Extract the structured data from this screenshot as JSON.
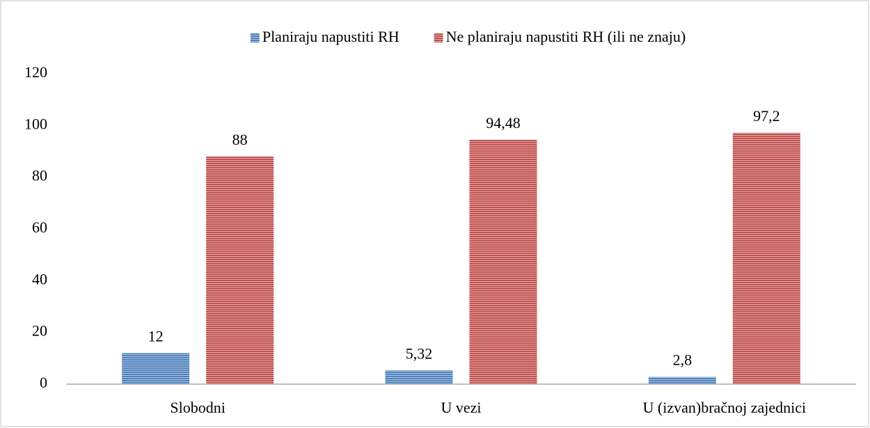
{
  "chart_data": {
    "type": "bar",
    "categories": [
      "Slobodni",
      "U vezi",
      "U (izvan)bračnoj zajednici"
    ],
    "series": [
      {
        "name": "Planiraju napustiti RH",
        "color": "#4f81bd",
        "values": [
          12,
          5.32,
          2.8
        ],
        "value_labels": [
          "12",
          "5,32",
          "2,8"
        ]
      },
      {
        "name": "Ne planiraju napustiti RH (ili ne znaju)",
        "color": "#c0504d",
        "values": [
          88,
          94.48,
          97.2
        ],
        "value_labels": [
          "88",
          "94,48",
          "97,2"
        ]
      }
    ],
    "ylim": [
      0,
      120
    ],
    "yticks": [
      0,
      20,
      40,
      60,
      80,
      100,
      120
    ],
    "grid": false,
    "legend": "top"
  }
}
